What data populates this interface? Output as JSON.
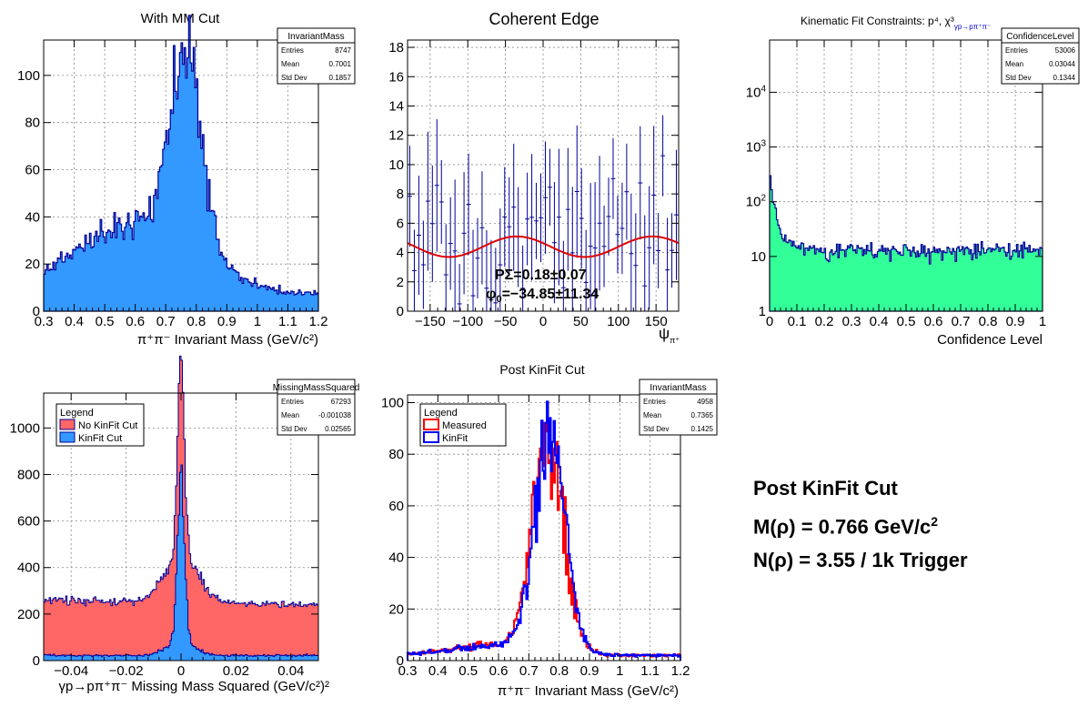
{
  "colors": {
    "navy": "#000099",
    "blue_fill": "#3399ff",
    "red_fill": "#ff6666",
    "green_fill": "#33ff99",
    "fit_red": "#dd0000",
    "measured_red": "#ff0000",
    "kinfit_blue": "#0000ff"
  },
  "summary": {
    "title": "Post KinFit Cut",
    "mass_prefix": "M(ρ) = 0.766 GeV/c",
    "mass_sup": "2",
    "count": "N(ρ) = 3.55 / 1k Trigger"
  },
  "chart_data": [
    {
      "type": "bar",
      "title": "With MM Cut",
      "xlabel_html": "π⁺π⁻ Invariant Mass (GeV/c²)",
      "xlim": [
        0.3,
        1.2
      ],
      "ylim": [
        0,
        115
      ],
      "xticks": [
        0.3,
        0.4,
        0.5,
        0.6,
        0.7,
        0.8,
        0.9,
        1,
        1.1,
        1.2
      ],
      "xtick_labels": [
        "0.3",
        "0.4",
        "0.5",
        "0.6",
        "0.7",
        "0.8",
        "0.9",
        "1",
        "1.1",
        "1.2"
      ],
      "yticks": [
        0,
        20,
        40,
        60,
        80,
        100
      ],
      "ytick_labels": [
        "0",
        "20",
        "40",
        "60",
        "80",
        "100"
      ],
      "shape": {
        "kind": "peak",
        "center": 0.765,
        "width": 0.055,
        "amp": 78,
        "bg_center": 0.6,
        "bg_width": 0.2,
        "bg_amp": 30,
        "floor": 7,
        "noise": 0.22,
        "bins": 180,
        "seed": 11
      },
      "stats": {
        "name": "InvariantMass",
        "rows": [
          [
            "Entries",
            "8747"
          ],
          [
            "Mean",
            "0.7001"
          ],
          [
            "Std Dev",
            "0.1857"
          ]
        ]
      }
    },
    {
      "type": "scatter",
      "title": "Coherent Edge",
      "xlabel": "ψ",
      "xlabel_sub": "π⁺",
      "xlim": [
        -180,
        180
      ],
      "ylim": [
        0,
        18.5
      ],
      "xticks": [
        -150,
        -100,
        -50,
        0,
        50,
        100,
        150
      ],
      "xtick_labels": [
        "−150",
        "−100",
        "−50",
        "0",
        "50",
        "100",
        "150"
      ],
      "yticks": [
        0,
        2,
        4,
        6,
        8,
        10,
        12,
        14,
        16,
        18
      ],
      "ytick_labels": [
        "0",
        "2",
        "4",
        "6",
        "8",
        "10",
        "12",
        "14",
        "16",
        "18"
      ],
      "fit": {
        "mean": 4.4,
        "amp": 0.7,
        "phase_deg": -34.85
      },
      "shape": {
        "points": 60,
        "seed": 5
      },
      "fit_text": [
        "PΣ=0.18±0.07",
        "φ",
        "0",
        "=−34.85±11.34"
      ]
    },
    {
      "type": "bar",
      "title": "Kinematic Fit Constraints: p⁴, χ³",
      "title_sub": "γp→pπ⁺π⁻",
      "xlabel": "Confidence Level",
      "xlim": [
        0,
        1
      ],
      "ylog": true,
      "ylim": [
        1,
        90000
      ],
      "xticks": [
        0,
        0.1,
        0.2,
        0.3,
        0.4,
        0.5,
        0.6,
        0.7,
        0.8,
        0.9,
        1
      ],
      "xtick_labels": [
        "0",
        "0.1",
        "0.2",
        "0.3",
        "0.4",
        "0.5",
        "0.6",
        "0.7",
        "0.8",
        "0.9",
        "1"
      ],
      "yticks": [
        1,
        10,
        100,
        1000,
        10000
      ],
      "ytick_labels": [
        "1",
        "10",
        "10^2",
        "10^3",
        "10^4"
      ],
      "shape": {
        "kind": "confidence",
        "plateau": 13,
        "spike": 250,
        "bins": 200,
        "seed": 23
      },
      "stats": {
        "name": "ConfidenceLevel",
        "rows": [
          [
            "Entries",
            "53006"
          ],
          [
            "Mean",
            "0.03044"
          ],
          [
            "Std Dev",
            "0.1344"
          ]
        ]
      }
    },
    {
      "type": "bar",
      "title": "",
      "xlabel_html": "γp→pπ⁺π⁻ Missing Mass Squared (GeV/c²)²",
      "xlim": [
        -0.05,
        0.05
      ],
      "ylim": [
        0,
        1150
      ],
      "xticks": [
        -0.04,
        -0.02,
        0,
        0.02,
        0.04
      ],
      "xtick_labels": [
        "−0.04",
        "−0.02",
        "0",
        "0.02",
        "0.04"
      ],
      "yticks": [
        0,
        200,
        400,
        600,
        800,
        1000
      ],
      "ytick_labels": [
        "0",
        "200",
        "400",
        "600",
        "800",
        "1000"
      ],
      "legend": {
        "title": "Legend",
        "entries": [
          "No KinFit Cut",
          "KinFit Cut"
        ]
      },
      "series": [
        {
          "name": "No KinFit Cut",
          "shape": {
            "kind": "mm",
            "bg": 250,
            "peak": 880,
            "width": 0.0012,
            "wide": 0.006,
            "wide_amp": 200,
            "slope": -200,
            "bins": 200,
            "seed": 31
          }
        },
        {
          "name": "KinFit Cut",
          "shape": {
            "kind": "mm2",
            "bg": 22,
            "peak": 700,
            "width": 0.0013,
            "wide": 0.005,
            "wide_amp": 60,
            "bins": 200,
            "seed": 37
          }
        }
      ],
      "stats": {
        "name": "MissingMassSquared",
        "rows": [
          [
            "Entries",
            "67293"
          ],
          [
            "Mean",
            "-0.001038"
          ],
          [
            "Std Dev",
            "0.02565"
          ]
        ]
      }
    },
    {
      "type": "line",
      "title": "Post KinFit Cut",
      "xlabel_html": "π⁺π⁻ Invariant Mass (GeV/c²)",
      "xlim": [
        0.3,
        1.2
      ],
      "ylim": [
        0,
        103
      ],
      "xticks": [
        0.3,
        0.4,
        0.5,
        0.6,
        0.7,
        0.8,
        0.9,
        1,
        1.1,
        1.2
      ],
      "xtick_labels": [
        "0.3",
        "0.4",
        "0.5",
        "0.6",
        "0.7",
        "0.8",
        "0.9",
        "1",
        "1.1",
        "1.2"
      ],
      "yticks": [
        0,
        20,
        40,
        60,
        80,
        100
      ],
      "ytick_labels": [
        "0",
        "20",
        "40",
        "60",
        "80",
        "100"
      ],
      "legend": {
        "title": "Legend",
        "entries": [
          "Measured",
          "KinFit"
        ]
      },
      "series": [
        {
          "name": "Measured",
          "shape": {
            "kind": "peak",
            "center": 0.765,
            "width": 0.052,
            "amp": 78,
            "bg_center": 0.6,
            "bg_width": 0.15,
            "bg_amp": 4,
            "floor": 2,
            "noise": 0.3,
            "bins": 200,
            "seed": 41
          }
        },
        {
          "name": "KinFit",
          "shape": {
            "kind": "peak",
            "center": 0.77,
            "width": 0.05,
            "amp": 84,
            "bg_center": 0.6,
            "bg_width": 0.15,
            "bg_amp": 4,
            "floor": 2,
            "noise": 0.3,
            "bins": 200,
            "seed": 43
          }
        }
      ],
      "stats": {
        "name": "InvariantMass",
        "rows": [
          [
            "Entries",
            "4958"
          ],
          [
            "Mean",
            "0.7365"
          ],
          [
            "Std Dev",
            "0.1425"
          ]
        ]
      }
    }
  ]
}
